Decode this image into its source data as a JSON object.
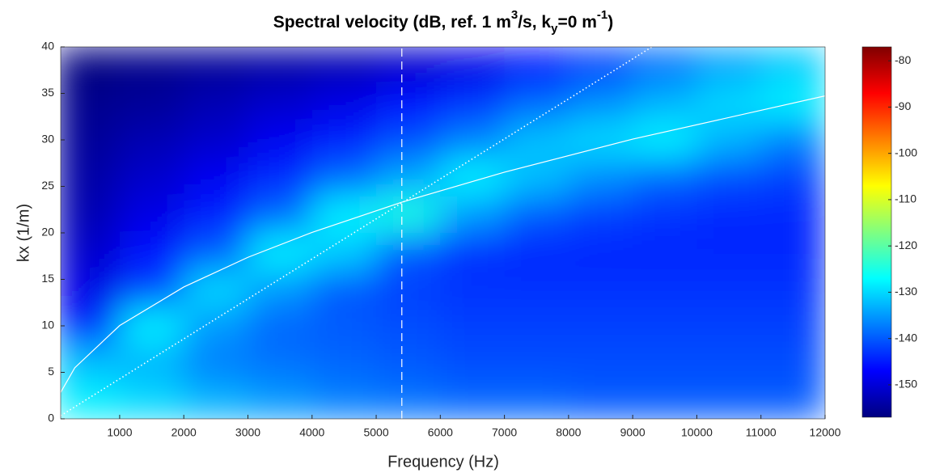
{
  "chart_data": {
    "type": "heatmap",
    "title": [
      {
        "text": "Spectral velocity (dB, ref. 1 m"
      },
      {
        "text": "3",
        "style": "sup"
      },
      {
        "text": "/s, k"
      },
      {
        "text": "y",
        "style": "sub"
      },
      {
        "text": "=0 m"
      },
      {
        "text": "-1",
        "style": "sup"
      },
      {
        "text": ")"
      }
    ],
    "xlabel": "Frequency (Hz)",
    "ylabel": "kx (1/m)",
    "xlim": [
      80,
      12000
    ],
    "ylim": [
      0,
      40
    ],
    "xticks": [
      1000,
      2000,
      3000,
      4000,
      5000,
      6000,
      7000,
      8000,
      9000,
      10000,
      11000,
      12000
    ],
    "yticks": [
      0,
      5,
      10,
      15,
      20,
      25,
      30,
      35,
      40
    ],
    "xbins": [
      0,
      1000,
      2000,
      3000,
      4000,
      5000,
      6000,
      7000,
      8000,
      9000,
      10000,
      11000,
      12000
    ],
    "ybins": [
      0,
      4,
      8,
      12,
      16,
      20,
      24,
      28,
      32,
      36,
      40
    ],
    "z": [
      [
        -128,
        -130,
        -133,
        -135,
        -137,
        -138,
        -139,
        -139,
        -140,
        -140,
        -140,
        -140
      ],
      [
        -132,
        -133,
        -137,
        -138,
        -139,
        -140,
        -141,
        -141,
        -141,
        -141,
        -141,
        -141
      ],
      [
        -145,
        -128,
        -135,
        -139,
        -140,
        -141,
        -142,
        -142,
        -142,
        -142,
        -142,
        -142
      ],
      [
        -149,
        -142,
        -130,
        -135,
        -140,
        -142,
        -143,
        -143,
        -143,
        -143,
        -143,
        -143
      ],
      [
        -151,
        -146,
        -140,
        -128,
        -131,
        -140,
        -143,
        -144,
        -144,
        -144,
        -144,
        -144
      ],
      [
        -153,
        -149,
        -145,
        -139,
        -128,
        -125,
        -135,
        -140,
        -142,
        -143,
        -144,
        -144
      ],
      [
        -154,
        -151,
        -148,
        -144,
        -139,
        -134,
        -128,
        -132,
        -136,
        -139,
        -141,
        -142
      ],
      [
        -155,
        -153,
        -151,
        -148,
        -145,
        -141,
        -137,
        -132,
        -130,
        -128,
        -133,
        -137
      ],
      [
        -156,
        -155,
        -153,
        -151,
        -149,
        -146,
        -143,
        -139,
        -136,
        -133,
        -130,
        -128
      ],
      [
        -157,
        -156,
        -155,
        -154,
        -153,
        -151,
        -149,
        -146,
        -142,
        -138,
        -134,
        -131
      ]
    ],
    "clim": [
      -157,
      -77
    ],
    "cticks": [
      -150,
      -140,
      -130,
      -120,
      -110,
      -100,
      -90,
      -80
    ],
    "colormap": [
      "#000080",
      "#0000ff",
      "#0080ff",
      "#00ffff",
      "#80ff80",
      "#ffff00",
      "#ff8000",
      "#ff0000",
      "#800000"
    ],
    "series": [
      {
        "color": "#ffffff",
        "style": "solid",
        "x": [
          80,
          300,
          1000,
          2000,
          3000,
          4000,
          5400,
          7000,
          9000,
          12000
        ],
        "y": [
          2.84,
          5.49,
          10.03,
          14.18,
          17.37,
          20.05,
          23.3,
          26.53,
          30.08,
          34.73
        ]
      },
      {
        "color": "#ffffff",
        "style": "dotted",
        "x": [
          80,
          9300
        ],
        "y": [
          0.34,
          40
        ]
      },
      {
        "color": "#ffffff",
        "style": "dashed",
        "x": [
          5400,
          5400
        ],
        "y": [
          0,
          40
        ]
      }
    ]
  }
}
